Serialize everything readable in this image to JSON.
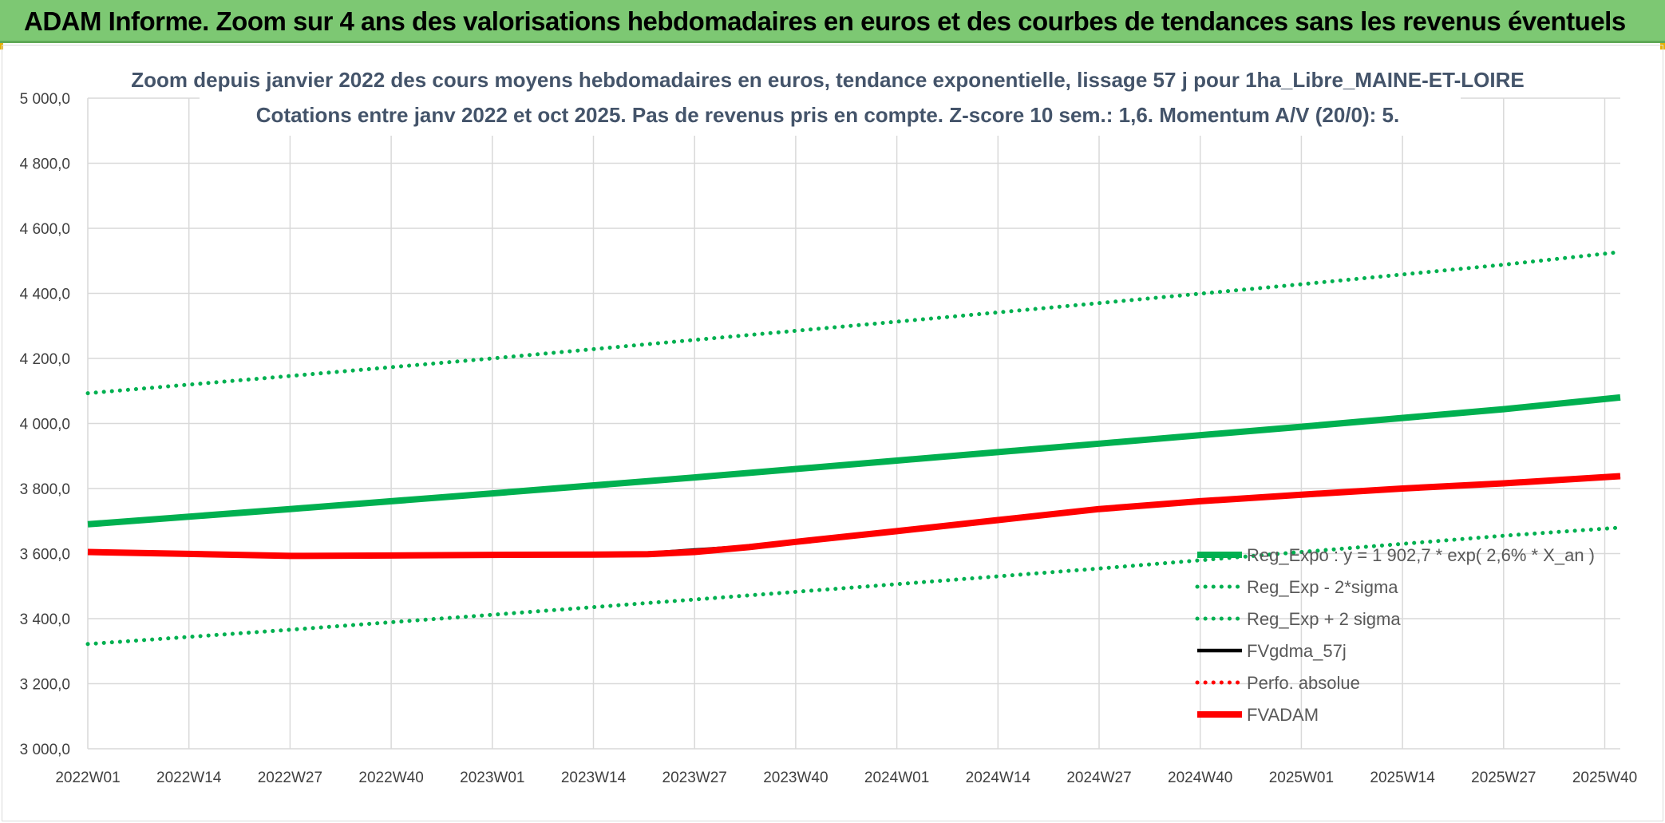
{
  "banner": {
    "title": "ADAM Informe. Zoom sur 4 ans des valorisations hebdomadaires en euros et des courbes de tendances sans les revenus éventuels"
  },
  "chart_data": {
    "type": "line",
    "title": "Zoom depuis janvier 2022 des cours moyens hebdomadaires en euros, tendance exponentielle, lissage 57 j pour 1ha_Libre_MAINE-ET-LOIRE",
    "subtitle": "Cotations entre janv 2022 et oct 2025. Pas de revenus pris en compte. Z-score 10 sem.: 1,6. Momentum A/V (20/0): 5.",
    "xlabel": "",
    "ylabel": "",
    "ylim": [
      3000,
      5000
    ],
    "y_ticks": [
      "3 000,0",
      "3 200,0",
      "3 400,0",
      "3 600,0",
      "3 800,0",
      "4 000,0",
      "4 200,0",
      "4 400,0",
      "4 600,0",
      "4 800,0",
      "5 000,0"
    ],
    "y_tick_values": [
      3000,
      3200,
      3400,
      3600,
      3800,
      4000,
      4200,
      4400,
      4600,
      4800,
      5000
    ],
    "x_range": [
      0,
      197
    ],
    "x_ticks": [
      "2022W01",
      "2022W14",
      "2022W27",
      "2022W40",
      "2023W01",
      "2023W14",
      "2023W27",
      "2023W40",
      "2024W01",
      "2024W14",
      "2024W27",
      "2024W40",
      "2025W01",
      "2025W14",
      "2025W27",
      "2025W40"
    ],
    "x_tick_positions": [
      0,
      13,
      26,
      39,
      52,
      65,
      78,
      91,
      104,
      117,
      130,
      143,
      156,
      169,
      182,
      195
    ],
    "grid": true,
    "legend_position": "bottom-right",
    "series": [
      {
        "name": "Reg_Expo : y = 1 902,7 * exp( 2,6% * X_an )",
        "color": "#00b050",
        "style": "solid",
        "width": "thick",
        "x": [
          0,
          26,
          52,
          78,
          104,
          130,
          156,
          182,
          197
        ],
        "values": [
          3690,
          3737,
          3785,
          3834,
          3886,
          3938,
          3990,
          4044,
          4080
        ]
      },
      {
        "name": "Reg_Exp - 2*sigma",
        "color": "#00b050",
        "style": "dotted",
        "width": "medium",
        "x": [
          0,
          26,
          52,
          78,
          104,
          130,
          156,
          182,
          197
        ],
        "values": [
          3322,
          3366,
          3412,
          3459,
          3506,
          3554,
          3605,
          3655,
          3680
        ]
      },
      {
        "name": "Reg_Exp + 2 sigma",
        "color": "#00b050",
        "style": "dotted",
        "width": "medium",
        "x": [
          0,
          26,
          52,
          78,
          104,
          130,
          156,
          182,
          197
        ],
        "values": [
          4093,
          4146,
          4200,
          4257,
          4313,
          4370,
          4428,
          4488,
          4527
        ]
      },
      {
        "name": "FVgdma_57j",
        "color": "#000000",
        "style": "solid",
        "width": "medium",
        "x": [
          0,
          13,
          26,
          39,
          52,
          65,
          72,
          78,
          85,
          91,
          104,
          117,
          130,
          143,
          156,
          169,
          182,
          197
        ],
        "values": [
          3605,
          3599,
          3593,
          3594,
          3596,
          3597,
          3601,
          3611,
          3622,
          3636,
          3669,
          3703,
          3737,
          3761,
          3781,
          3800,
          3816,
          3838
        ]
      },
      {
        "name": "Perfo. absolue",
        "color": "#ff0000",
        "style": "dotted",
        "width": "medium",
        "x": [],
        "values": []
      },
      {
        "name": "FVADAM",
        "color": "#ff0000",
        "style": "solid",
        "width": "thick",
        "x": [
          0,
          13,
          26,
          39,
          52,
          65,
          72,
          78,
          85,
          91,
          104,
          117,
          130,
          143,
          156,
          169,
          182,
          197
        ],
        "values": [
          3605,
          3599,
          3593,
          3594,
          3596,
          3597,
          3598,
          3605,
          3620,
          3636,
          3669,
          3703,
          3737,
          3761,
          3781,
          3800,
          3816,
          3838
        ]
      }
    ]
  }
}
